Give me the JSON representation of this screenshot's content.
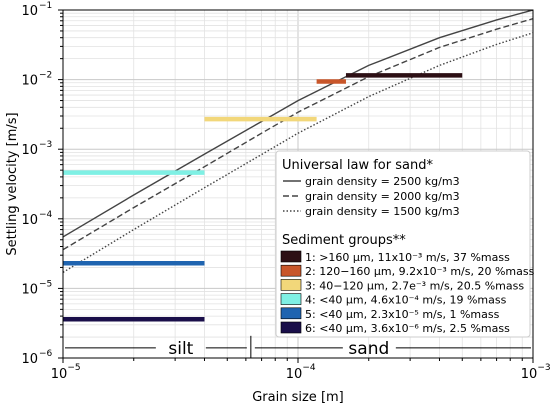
{
  "chart_data": {
    "type": "line",
    "xscale": "log",
    "yscale": "log",
    "xlabel": "Grain size [m]",
    "ylabel": "Settling velocity [m/s]",
    "xlim": [
      1e-05,
      0.001
    ],
    "ylim": [
      1e-06,
      0.1
    ],
    "grid": true,
    "x_ticks": [
      {
        "base": "10",
        "exp": "−5"
      },
      {
        "base": "10",
        "exp": "−4"
      },
      {
        "base": "10",
        "exp": "−3"
      }
    ],
    "y_ticks": [
      {
        "base": "10",
        "exp": "−6"
      },
      {
        "base": "10",
        "exp": "−5"
      },
      {
        "base": "10",
        "exp": "−4"
      },
      {
        "base": "10",
        "exp": "−3"
      },
      {
        "base": "10",
        "exp": "−2"
      },
      {
        "base": "10",
        "exp": "−1"
      }
    ],
    "series": [
      {
        "name": "grain density = 2500 kg/m3",
        "style": "solid",
        "color": "#444444",
        "x": [
          1e-05,
          2e-05,
          4e-05,
          7e-05,
          0.0001,
          0.0002,
          0.0004,
          0.0007,
          0.001
        ],
        "y": [
          5.5e-05,
          0.00022,
          0.00085,
          0.0025,
          0.005,
          0.016,
          0.04,
          0.072,
          0.1
        ]
      },
      {
        "name": "grain density = 2000 kg/m3",
        "style": "dashed",
        "color": "#444444",
        "x": [
          1e-05,
          2e-05,
          4e-05,
          7e-05,
          0.0001,
          0.0002,
          0.0004,
          0.0007,
          0.001
        ],
        "y": [
          3.6e-05,
          0.000145,
          0.00056,
          0.0017,
          0.0034,
          0.011,
          0.029,
          0.053,
          0.075
        ]
      },
      {
        "name": "grain density = 1500 kg/m3",
        "style": "dotted",
        "color": "#444444",
        "x": [
          1e-05,
          2e-05,
          4e-05,
          7e-05,
          0.0001,
          0.0002,
          0.0004,
          0.0007,
          0.001
        ],
        "y": [
          1.7e-05,
          7e-05,
          0.00028,
          0.00084,
          0.0017,
          0.0057,
          0.016,
          0.032,
          0.047
        ]
      }
    ],
    "segments": [
      {
        "label": "1: >160 μm, 11x10⁻³ m/s, 37 %mass",
        "color": "#2c0f14",
        "x": [
          0.00016,
          0.0005
        ],
        "y": 0.0115
      },
      {
        "label": "2: 120−160 μm, 9.2x10⁻³ m/s, 20 %mass",
        "color": "#c8562a",
        "x": [
          0.00012,
          0.00016
        ],
        "y": 0.0094
      },
      {
        "label": "3: 40−120 μm, 2.7e⁻³ m/s, 20.5 %mass",
        "color": "#f2d77a",
        "x": [
          4e-05,
          0.00012
        ],
        "y": 0.0027
      },
      {
        "label": "4: <40 μm, 4.6x10⁻⁴ m/s, 19 %mass",
        "color": "#7ff0e4",
        "x": [
          1e-05,
          4e-05
        ],
        "y": 0.00046
      },
      {
        "label": "5: <40 μm, 2.3x10⁻⁵ m/s, 1 %mass",
        "color": "#1f64b0",
        "x": [
          1e-05,
          4e-05
        ],
        "y": 2.3e-05
      },
      {
        "label": "6: <40 μm, 3.6x10⁻⁶ m/s, 2.5 %mass",
        "color": "#1a0f4a",
        "x": [
          1e-05,
          4e-05
        ],
        "y": 3.6e-06
      }
    ],
    "legend": {
      "placement": "lower-right",
      "title1": "Universal law for sand*",
      "title2": "Sediment groups**"
    },
    "annotations": {
      "silt_label": "silt",
      "sand_label": "sand",
      "boundary_x": 6.3e-05,
      "arrow_y": 1.4e-06
    }
  }
}
